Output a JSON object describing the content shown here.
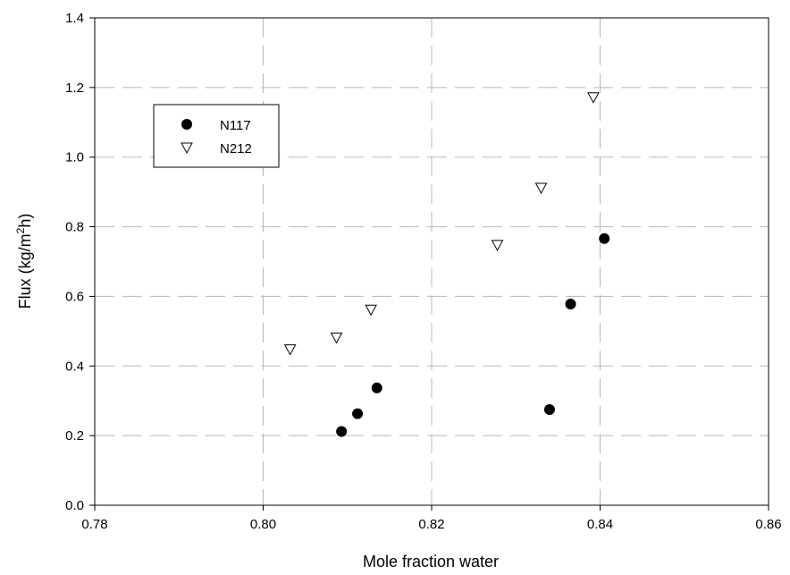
{
  "chart_data": {
    "type": "scatter",
    "title": "",
    "xlabel": "Mole fraction water",
    "ylabel_parts": [
      "Flux (kg/m",
      "2",
      "h)"
    ],
    "xlim": [
      0.78,
      0.86
    ],
    "ylim": [
      0.0,
      1.4
    ],
    "xticks": [
      0.78,
      0.8,
      0.82,
      0.84,
      0.86
    ],
    "xtick_labels": [
      "0.78",
      "0.80",
      "0.82",
      "0.84",
      "0.86"
    ],
    "yticks": [
      0.0,
      0.2,
      0.4,
      0.6,
      0.8,
      1.0,
      1.2,
      1.4
    ],
    "ytick_labels": [
      "0.0",
      "0.2",
      "0.4",
      "0.6",
      "0.8",
      "1.0",
      "1.2",
      "1.4"
    ],
    "grid": true,
    "legend_position": "top-left",
    "series": [
      {
        "name": "N117",
        "marker": "filled-circle",
        "color": "#000000",
        "points": [
          [
            0.8093,
            0.212
          ],
          [
            0.8112,
            0.263
          ],
          [
            0.8135,
            0.337
          ],
          [
            0.834,
            0.275
          ],
          [
            0.8365,
            0.578
          ],
          [
            0.8405,
            0.766
          ]
        ]
      },
      {
        "name": "N212",
        "marker": "open-triangle-down",
        "color": "#000000",
        "points": [
          [
            0.8032,
            0.448
          ],
          [
            0.8087,
            0.482
          ],
          [
            0.8128,
            0.562
          ],
          [
            0.8278,
            0.748
          ],
          [
            0.833,
            0.912
          ],
          [
            0.8392,
            1.172
          ]
        ]
      }
    ]
  }
}
